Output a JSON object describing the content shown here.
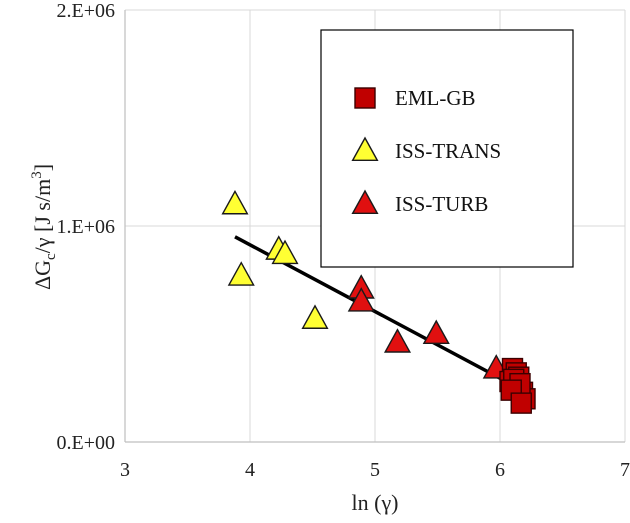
{
  "chart_data": {
    "type": "scatter",
    "xlabel": "ln (γ)",
    "ylabel": {
      "prefix": "ΔG",
      "sub": "c",
      "mid": "/γ [J s/m",
      "sup": "3",
      "suffix": "]"
    },
    "xlim": [
      3,
      7
    ],
    "ylim": [
      0,
      2000000
    ],
    "x_ticks": [
      3,
      4,
      5,
      6,
      7
    ],
    "x_tick_labels": [
      "3",
      "4",
      "5",
      "6",
      "7"
    ],
    "y_ticks": [
      0,
      1000000,
      2000000
    ],
    "y_tick_labels": [
      "0.E+00",
      "1.E+06",
      "2.E+06"
    ],
    "grid": {
      "x": true,
      "y": true
    },
    "legend_position": "top-right",
    "series": [
      {
        "name": "EML-GB",
        "marker": "square",
        "color": "#c00000",
        "x": [
          6.1,
          6.13,
          6.15,
          6.08,
          6.12,
          6.14,
          6.18,
          6.2,
          6.11,
          6.16,
          6.09,
          6.17
        ],
        "y": [
          340000,
          320000,
          300000,
          280000,
          260000,
          250000,
          230000,
          200000,
          290000,
          270000,
          240000,
          180000
        ]
      },
      {
        "name": "ISS-TRANS",
        "marker": "triangle",
        "color": "#ffff33",
        "x": [
          3.88,
          3.93,
          4.23,
          4.28,
          4.52
        ],
        "y": [
          1100000,
          770000,
          890000,
          870000,
          570000
        ]
      },
      {
        "name": "ISS-TURB",
        "marker": "triangle",
        "color": "#e01010",
        "x": [
          4.89,
          4.89,
          5.18,
          5.49,
          5.97
        ],
        "y": [
          710000,
          650000,
          460000,
          500000,
          340000
        ]
      }
    ],
    "trendline": {
      "x": [
        3.88,
        6.18
      ],
      "y": [
        950000,
        240000
      ],
      "color": "#000000"
    }
  }
}
